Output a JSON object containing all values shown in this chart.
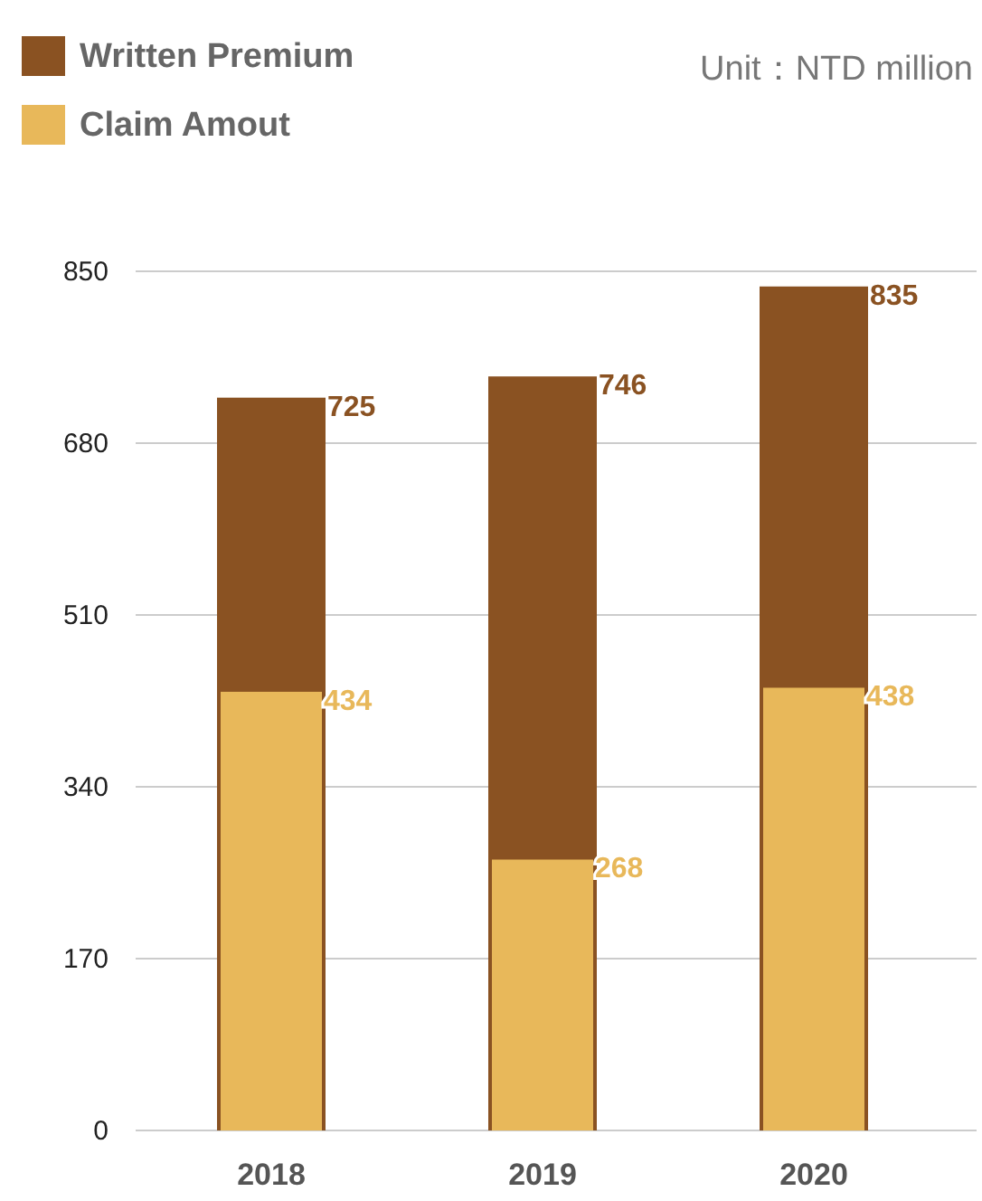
{
  "chart_data": {
    "type": "bar",
    "categories": [
      "2018",
      "2019",
      "2020"
    ],
    "series": [
      {
        "name": "Written Premium",
        "color": "#8a5222",
        "values": [
          725,
          746,
          835
        ]
      },
      {
        "name": "Claim Amout",
        "color": "#e8b85a",
        "values": [
          434,
          268,
          438
        ]
      }
    ],
    "ylim": [
      0,
      850
    ],
    "yticks": [
      0,
      170,
      340,
      510,
      680,
      850
    ],
    "grid": "y",
    "legend": "top left",
    "data_labels": true,
    "annotations": [
      "Unit：NTD million"
    ]
  }
}
